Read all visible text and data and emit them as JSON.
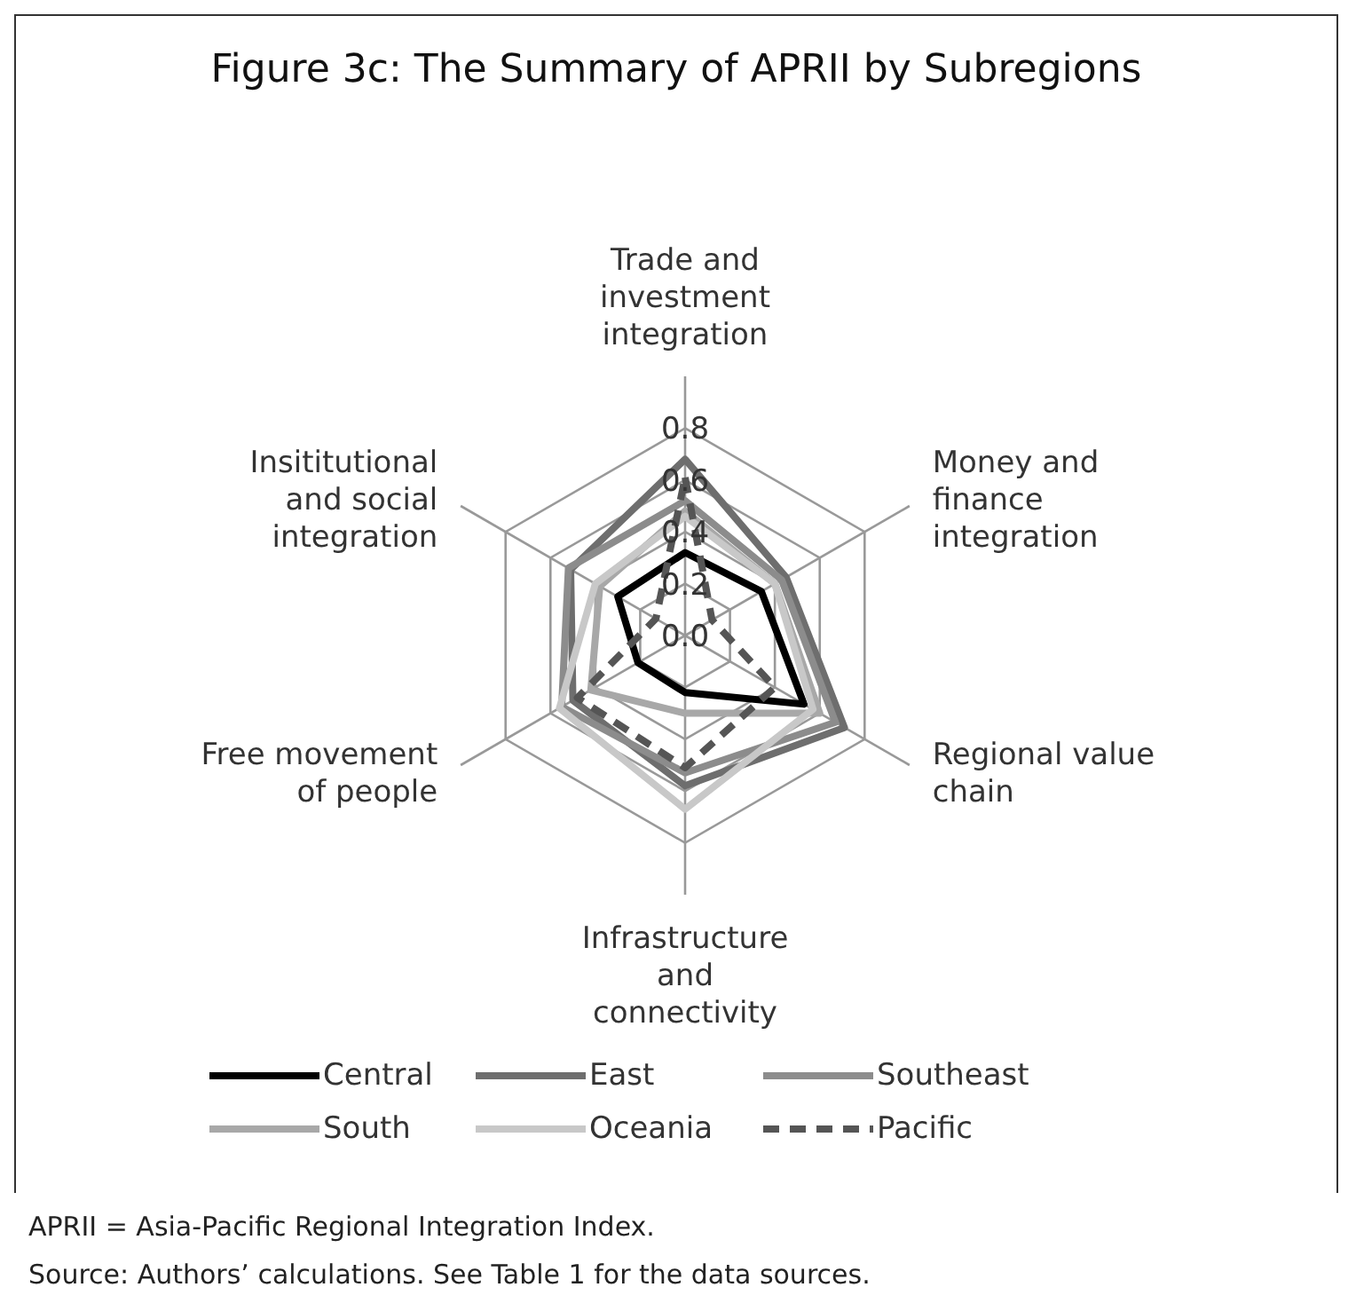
{
  "chart_data": {
    "type": "radar",
    "title": "Figure 3c: The Summary of APRII by Subregions",
    "categories": [
      "Trade and investment integration",
      "Money and finance integration",
      "Regional value chain",
      "Infrastructure and connectivity",
      "Free movement of people",
      "Insititutional and social integration"
    ],
    "series": [
      {
        "name": "Central",
        "color": "#000000",
        "values": [
          0.32,
          0.34,
          0.53,
          0.22,
          0.21,
          0.3
        ]
      },
      {
        "name": "East",
        "color": "#6e6e6e",
        "values": [
          0.68,
          0.45,
          0.71,
          0.58,
          0.5,
          0.51
        ]
      },
      {
        "name": "Southeast",
        "color": "#8c8c8c",
        "values": [
          0.52,
          0.43,
          0.67,
          0.53,
          0.55,
          0.52
        ]
      },
      {
        "name": "South",
        "color": "#a8a8a8",
        "values": [
          0.48,
          0.4,
          0.6,
          0.3,
          0.42,
          0.38
        ]
      },
      {
        "name": "Oceania",
        "color": "#c8c8c8",
        "values": [
          0.46,
          0.4,
          0.57,
          0.67,
          0.56,
          0.4
        ]
      },
      {
        "name": "Pacific",
        "color": "#555555",
        "line_style": "dashed",
        "values": [
          0.61,
          0.12,
          0.4,
          0.51,
          0.48,
          0.13
        ]
      }
    ],
    "ylim": [
      0,
      0.8
    ],
    "yticks": [
      {
        "value": 0,
        "label": "0.0"
      },
      0.2,
      0.4,
      0.6,
      0.8
    ],
    "grid": true,
    "legend": "bottom",
    "annotations": [
      "APRII = Asia-Pacific Regional Integration Index.",
      "Source: Authors’ calculations. See Table 1 for the data sources."
    ]
  }
}
